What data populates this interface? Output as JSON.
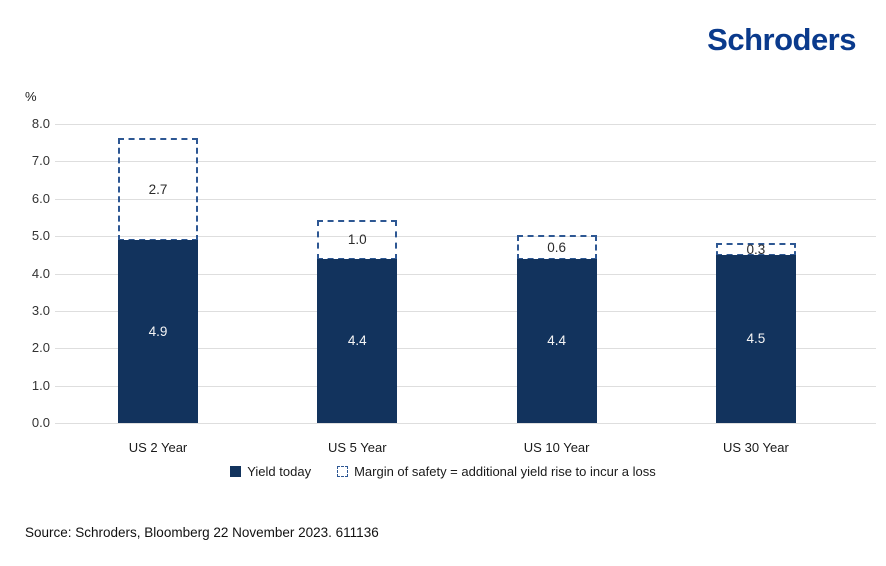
{
  "header": {
    "logo_text": "Schroders",
    "logo_color": "#0a3a8c"
  },
  "chart_data": {
    "type": "bar",
    "subtype": "stacked-with-dashed-margin",
    "unit_label": "%",
    "categories": [
      "US 2 Year",
      "US 5 Year",
      "US 10 Year",
      "US 30 Year"
    ],
    "series": [
      {
        "name": "Yield today",
        "values": [
          4.9,
          4.4,
          4.4,
          4.5
        ],
        "style": "solid",
        "color": "#12335d",
        "label_color": "#f5f5f5"
      },
      {
        "name": "Margin of safety = additional yield rise to incur a loss",
        "values": [
          2.7,
          1.0,
          0.6,
          0.3
        ],
        "style": "dashed-outline",
        "color": "#2d5793",
        "label_color": "#2b2b2b"
      }
    ],
    "ylim": [
      0,
      8
    ],
    "yticks": [
      "8.0",
      "7.0",
      "6.0",
      "5.0",
      "4.0",
      "3.0",
      "2.0",
      "1.0",
      "0.0"
    ],
    "ytick_values": [
      8,
      7,
      6,
      5,
      4,
      3,
      2,
      1,
      0
    ],
    "grid": true,
    "gridline_color": "#dedede",
    "legend_position": "bottom"
  },
  "legend": {
    "items": [
      {
        "label": "Yield today",
        "swatch": "solid-square"
      },
      {
        "label": "Margin of safety = additional yield rise to incur a loss",
        "swatch": "dashed-square"
      }
    ]
  },
  "source": {
    "text": "Source: Schroders, Bloomberg 22 November 2023. 611136"
  }
}
